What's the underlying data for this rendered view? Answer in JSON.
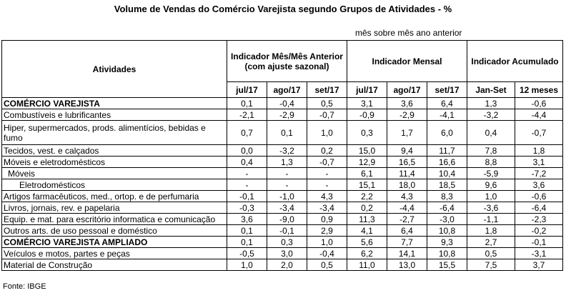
{
  "title": "Volume de Vendas do Comércio Varejista segundo Grupos de Atividades - %",
  "subtitle": "mês sobre mês ano anterior",
  "header": {
    "atividades": "Atividades",
    "group1": "Indicador Mês/Mês Anterior (com ajuste sazonal)",
    "group2": "Indicador Mensal",
    "group3": "Indicador Acumulado",
    "cols": [
      "jul/17",
      "ago/17",
      "set/17",
      "jul/17",
      "ago/17",
      "set/17",
      "Jan-Set",
      "12 meses"
    ]
  },
  "rows": [
    {
      "label": "COMÉRCIO VAREJISTA",
      "style": "bold",
      "values": [
        "0,1",
        "-0,4",
        "0,5",
        "3,1",
        "3,6",
        "6,4",
        "1,3",
        "-0,6"
      ]
    },
    {
      "label": "Combustíveis e lubrificantes",
      "style": "",
      "values": [
        "-2,1",
        "-2,9",
        "-0,7",
        "-0,9",
        "-2,9",
        "-4,1",
        "-3,2",
        "-4,4"
      ]
    },
    {
      "label": "Hiper, supermercados, prods. alimentícios, bebidas e fumo",
      "style": "tall",
      "values": [
        "0,7",
        "0,1",
        "1,0",
        "0,3",
        "1,7",
        "6,0",
        "0,4",
        "-0,7"
      ]
    },
    {
      "label": "Tecidos, vest. e calçados",
      "style": "",
      "values": [
        "0,0",
        "-3,2",
        "0,2",
        "15,0",
        "9,4",
        "11,7",
        "7,8",
        "1,8"
      ]
    },
    {
      "label": "Móveis e eletrodomésticos",
      "style": "",
      "values": [
        "0,4",
        "1,3",
        "-0,7",
        "12,9",
        "16,5",
        "16,6",
        "8,8",
        "3,1"
      ]
    },
    {
      "label": "Móveis",
      "style": "sub",
      "values": [
        "-",
        "-",
        "-",
        "6,1",
        "11,4",
        "10,4",
        "-5,9",
        "-7,2"
      ]
    },
    {
      "label": "Eletrodomésticos",
      "style": "sub2",
      "values": [
        "-",
        "-",
        "-",
        "15,1",
        "18,0",
        "18,5",
        "9,6",
        "3,6"
      ]
    },
    {
      "label": "Artigos farmacêuticos, med., ortop. e de perfumaria",
      "style": "",
      "values": [
        "-0,1",
        "-1,0",
        "4,3",
        "2,2",
        "4,3",
        "8,3",
        "1,0",
        "-0,6"
      ]
    },
    {
      "label": "Livros, jornais, rev. e papelaria",
      "style": "",
      "values": [
        "-0,3",
        "-3,4",
        "-3,4",
        "0,2",
        "-4,4",
        "-6,4",
        "-3,6",
        "-6,4"
      ]
    },
    {
      "label": "Equip. e mat. para escritório informatica e comunicação",
      "style": "",
      "values": [
        "3,6",
        "-9,0",
        "0,9",
        "11,3",
        "-2,7",
        "-3,0",
        "-1,1",
        "-2,3"
      ]
    },
    {
      "label": "Outros arts. de uso pessoal e doméstico",
      "style": "",
      "values": [
        "0,1",
        "-0,1",
        "2,9",
        "4,1",
        "6,4",
        "10,8",
        "1,8",
        "-0,2"
      ]
    },
    {
      "label": "COMÉRCIO VAREJISTA AMPLIADO",
      "style": "bold",
      "values": [
        "0,1",
        "0,3",
        "1,0",
        "5,6",
        "7,7",
        "9,3",
        "2,7",
        "-0,1"
      ]
    },
    {
      "label": "Veículos e motos, partes e peças",
      "style": "",
      "values": [
        "-0,5",
        "3,0",
        "-0,4",
        "6,2",
        "14,1",
        "10,8",
        "0,5",
        "-3,1"
      ]
    },
    {
      "label": "Material de Construção",
      "style": "",
      "values": [
        "1,0",
        "2,0",
        "0,5",
        "11,0",
        "13,0",
        "15,5",
        "7,5",
        "3,7"
      ]
    }
  ],
  "source": "Fonte: IBGE"
}
